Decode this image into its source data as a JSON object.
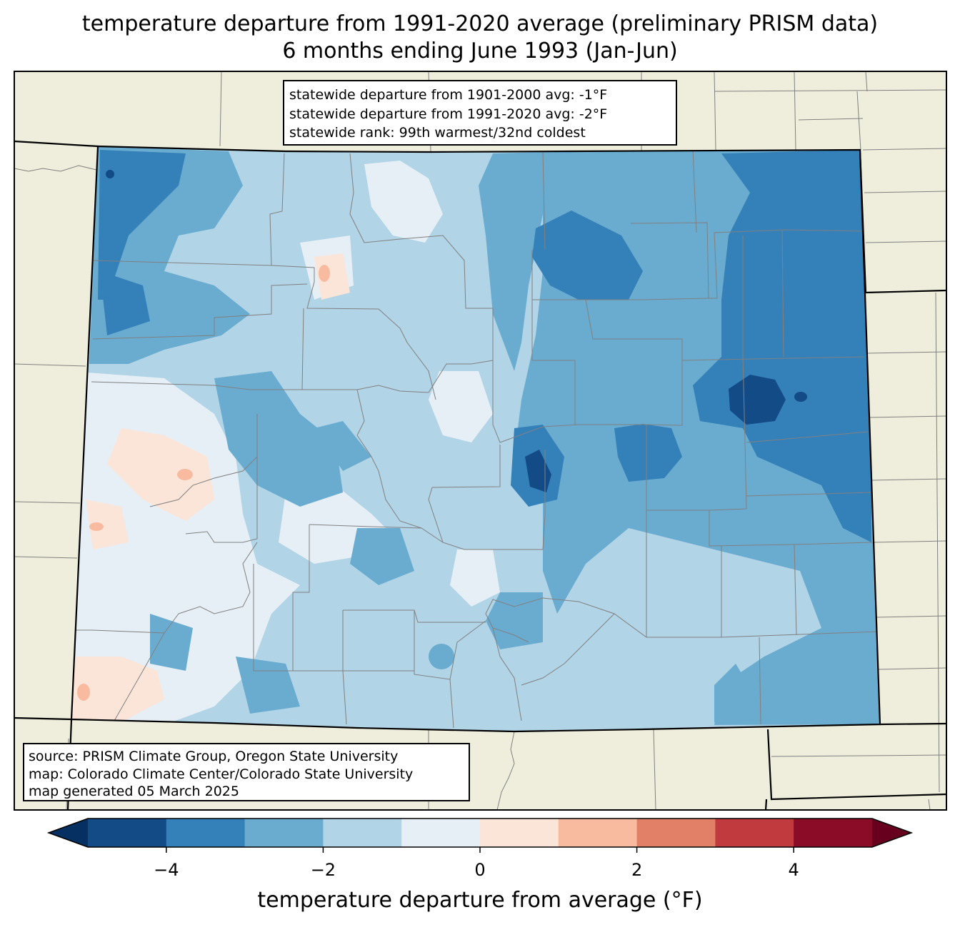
{
  "title": {
    "line1": "temperature departure from 1991-2020 average (preliminary PRISM data)",
    "line2": "6 months ending June 1993 (Jan-Jun)"
  },
  "stats": {
    "line1": "statewide departure from 1901-2000 avg: -1°F",
    "line2": "statewide departure from 1991-2020 avg: -2°F",
    "line3": "statewide rank: 99th warmest/32nd coldest"
  },
  "source": {
    "line1": "source: PRISM Climate Group, Oregon State University",
    "line2": "map: Colorado Climate Center/Colorado State University",
    "line3": "map generated 05 March 2025"
  },
  "colorbar": {
    "label": "temperature departure from average (°F)",
    "min": -5,
    "max": 5,
    "bins": [
      {
        "from": -5,
        "to": -4,
        "color": "#134b87"
      },
      {
        "from": -4,
        "to": -3,
        "color": "#3480b9"
      },
      {
        "from": -3,
        "to": -2,
        "color": "#6aacd0"
      },
      {
        "from": -2,
        "to": -1,
        "color": "#b2d4e7"
      },
      {
        "from": -1,
        "to": 0,
        "color": "#e6eff5"
      },
      {
        "from": 0,
        "to": 1,
        "color": "#fbe5d8"
      },
      {
        "from": 1,
        "to": 2,
        "color": "#f8bba0"
      },
      {
        "from": 2,
        "to": 3,
        "color": "#e27f67"
      },
      {
        "from": 3,
        "to": 4,
        "color": "#c03a3e"
      },
      {
        "from": 4,
        "to": 5,
        "color": "#8a0c26"
      }
    ],
    "under_color": "#053061",
    "over_color": "#67001f",
    "ticks": [
      "−4",
      "−2",
      "0",
      "2",
      "4"
    ],
    "tick_values": [
      -4,
      -2,
      0,
      2,
      4
    ]
  },
  "colors": {
    "land": "#efeedc",
    "state_border": "#000000",
    "county_border": "#808080"
  }
}
